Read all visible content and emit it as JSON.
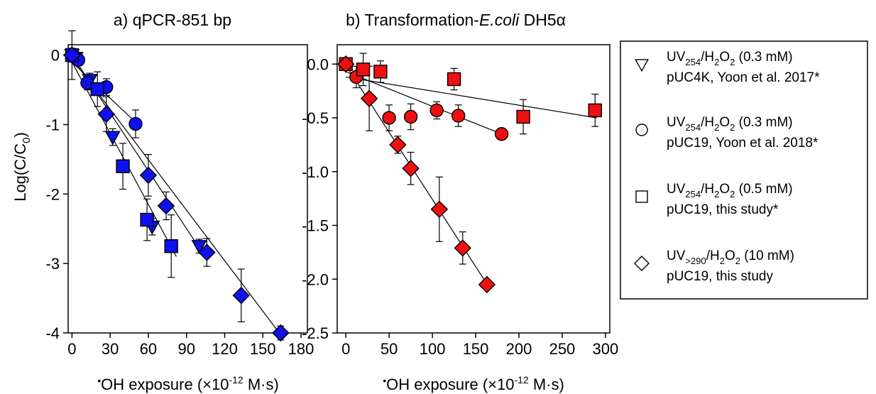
{
  "chart_data": [
    {
      "type": "scatter",
      "title": "a) qPCR-851 bp",
      "xlabel": "•OH exposure (×10⁻¹² M·s)",
      "ylabel": "Log(C/C₀)",
      "xlim": [
        -3,
        185
      ],
      "ylim": [
        -4,
        0.15
      ],
      "xticks": [
        0,
        30,
        60,
        90,
        120,
        150,
        180
      ],
      "yticks": [
        0,
        -1,
        -2,
        -3,
        -4
      ],
      "ytick_labels": [
        "0",
        "-1",
        "-2",
        "-3",
        "-4"
      ],
      "marker_color": "#1010ee",
      "series": [
        {
          "marker": "triangle-down",
          "points": [
            [
              0,
              0
            ],
            [
              3,
              -0.04
            ],
            [
              14,
              -0.36
            ],
            [
              32,
              -1.18
            ],
            [
              63,
              -2.47
            ],
            [
              100,
              -2.75
            ]
          ],
          "err": [
            0.1,
            0.08,
            0.1,
            0.12,
            0.12,
            0.1
          ]
        },
        {
          "marker": "circle",
          "points": [
            [
              0,
              0
            ],
            [
              5,
              -0.07
            ],
            [
              12,
              -0.4
            ],
            [
              27,
              -0.46
            ],
            [
              50,
              -0.99
            ]
          ],
          "err": [
            0.08,
            0.08,
            0.1,
            0.12,
            0.2
          ]
        },
        {
          "marker": "square",
          "points": [
            [
              0,
              0
            ],
            [
              20,
              -0.49
            ],
            [
              40,
              -1.6
            ],
            [
              59,
              -2.37
            ],
            [
              78,
              -2.75
            ]
          ],
          "err": [
            0.35,
            0.25,
            0.33,
            0.3,
            0.45
          ]
        },
        {
          "marker": "diamond",
          "points": [
            [
              0,
              0
            ],
            [
              27,
              -0.85
            ],
            [
              60,
              -1.73
            ],
            [
              74,
              -2.17
            ],
            [
              106,
              -2.84
            ],
            [
              133,
              -3.46
            ],
            [
              164,
              -4.0
            ]
          ],
          "err": [
            0.08,
            0.25,
            0.3,
            0.2,
            0.2,
            0.38,
            0.1
          ]
        }
      ],
      "fit_lines": [
        [
          [
            0,
            0
          ],
          [
            102,
            -2.83
          ]
        ],
        [
          [
            0,
            -0.1
          ],
          [
            52,
            -1.0
          ]
        ],
        [
          [
            0,
            -0.1
          ],
          [
            82,
            -2.9
          ]
        ],
        [
          [
            0,
            -0.05
          ],
          [
            165,
            -4.05
          ]
        ]
      ]
    },
    {
      "type": "scatter",
      "title": "b) Transformation-E.coli DH5α",
      "title_parts": [
        "b) Transformation-",
        "E.coli",
        " DH5α"
      ],
      "xlabel": "•OH exposure (×10⁻¹² M·s)",
      "ylabel": "",
      "xlim": [
        -10,
        305
      ],
      "ylim": [
        -2.5,
        0.18
      ],
      "xticks": [
        0,
        50,
        100,
        150,
        200,
        250,
        300
      ],
      "yticks": [
        0,
        -0.5,
        -1.0,
        -1.5,
        -2.0,
        -2.5
      ],
      "ytick_labels": [
        "0.0",
        "-0.5",
        "-1.0",
        "-1.5",
        "-2.0",
        "-2.5"
      ],
      "marker_color": "#ee1010",
      "series": [
        {
          "marker": "circle",
          "points": [
            [
              0,
              0
            ],
            [
              12,
              -0.12
            ],
            [
              50,
              -0.5
            ],
            [
              75,
              -0.49
            ],
            [
              105,
              -0.43
            ],
            [
              130,
              -0.48
            ],
            [
              180,
              -0.65
            ]
          ],
          "err": [
            0.05,
            0.1,
            0.12,
            0.12,
            0.08,
            0.1,
            0.05
          ]
        },
        {
          "marker": "square",
          "points": [
            [
              0,
              0
            ],
            [
              20,
              -0.05
            ],
            [
              40,
              -0.07
            ],
            [
              125,
              -0.14
            ],
            [
              205,
              -0.49
            ],
            [
              288,
              -0.43
            ]
          ],
          "err": [
            0.05,
            0.15,
            0.1,
            0.1,
            0.16,
            0.15
          ]
        },
        {
          "marker": "diamond",
          "points": [
            [
              0,
              0
            ],
            [
              27,
              -0.32
            ],
            [
              60,
              -0.75
            ],
            [
              75,
              -0.97
            ],
            [
              108,
              -1.35
            ],
            [
              135,
              -1.71
            ],
            [
              163,
              -2.05
            ]
          ],
          "err": [
            0.05,
            0.3,
            0.08,
            0.15,
            0.3,
            0.15,
            0.03
          ]
        }
      ],
      "fit_lines": [
        [
          [
            0,
            -0.12
          ],
          [
            290,
            -0.5
          ]
        ],
        [
          [
            0,
            -0.07
          ],
          [
            180,
            -0.65
          ]
        ],
        [
          [
            0,
            -0.01
          ],
          [
            165,
            -2.07
          ]
        ]
      ]
    }
  ],
  "legend": {
    "entries": [
      {
        "marker": "triangle-down",
        "line1": [
          "UV",
          "254",
          "/H",
          "2",
          "O",
          "2",
          " (0.3 mM)"
        ],
        "line2": "pUC4K, Yoon et al. 2017*"
      },
      {
        "marker": "circle",
        "line1": [
          "UV",
          "254",
          "/H",
          "2",
          "O",
          "2",
          " (0.3 mM)"
        ],
        "line2": "pUC19, Yoon et al. 2018*"
      },
      {
        "marker": "square",
        "line1": [
          "UV",
          "254",
          "/H",
          "2",
          "O",
          "2",
          " (0.5 mM)"
        ],
        "line2": "pUC19, this study*"
      },
      {
        "marker": "diamond",
        "line1": [
          "UV",
          ">290",
          "/H",
          "2",
          "O",
          "2",
          " (10 mM)"
        ],
        "line2": "pUC19, this study"
      }
    ]
  }
}
